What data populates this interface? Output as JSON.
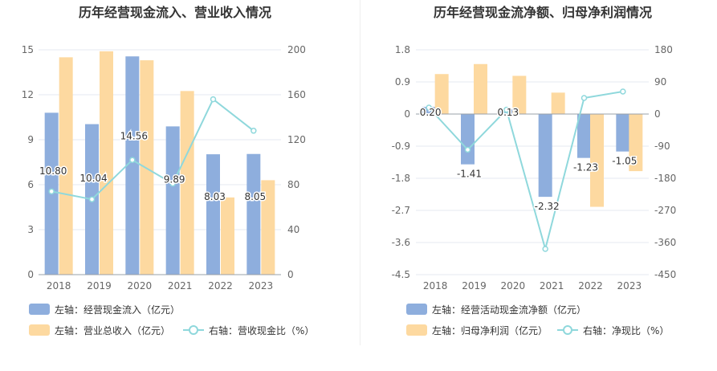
{
  "chart_data": [
    {
      "type": "bar",
      "title": "历年经营现金流入、营业收入情况",
      "categories": [
        "2018",
        "2019",
        "2020",
        "2021",
        "2022",
        "2023"
      ],
      "left_axis": {
        "ticks": [
          "0",
          "3",
          "6",
          "9",
          "12",
          "15"
        ],
        "ylim": [
          0,
          15
        ]
      },
      "right_axis": {
        "ticks": [
          "0",
          "40",
          "80",
          "120",
          "160",
          "200"
        ],
        "ylim": [
          0,
          200
        ]
      },
      "series": [
        {
          "name": "左轴：经营现金流入（亿元）",
          "kind": "bar",
          "axis": "left",
          "color": "#8eaedd",
          "values": [
            10.8,
            10.04,
            14.56,
            9.89,
            8.03,
            8.05
          ],
          "labels": [
            "10.80",
            "10.04",
            "14.56",
            "9.89",
            "8.03",
            "8.05"
          ]
        },
        {
          "name": "左轴：营业总收入（亿元）",
          "kind": "bar",
          "axis": "left",
          "color": "#fdd9a0",
          "values": [
            14.5,
            14.9,
            14.3,
            12.25,
            5.15,
            6.3
          ]
        },
        {
          "name": "右轴：营收现金比（%）",
          "kind": "line",
          "axis": "right",
          "color": "#8fd8dc",
          "values": [
            74,
            67,
            102,
            81,
            156,
            128
          ]
        }
      ]
    },
    {
      "type": "bar",
      "title": "历年经营现金流净额、归母净利润情况",
      "categories": [
        "2018",
        "2019",
        "2020",
        "2021",
        "2022",
        "2023"
      ],
      "left_axis": {
        "ticks": [
          "-4.5",
          "-3.6",
          "-2.7",
          "-1.8",
          "-0.9",
          "0",
          "0.9",
          "1.8"
        ],
        "ylim": [
          -4.5,
          1.8
        ]
      },
      "right_axis": {
        "ticks": [
          "-450",
          "-360",
          "-270",
          "-180",
          "-90",
          "0",
          "90",
          "180"
        ],
        "ylim": [
          -450,
          180
        ]
      },
      "series": [
        {
          "name": "左轴：经营活动现金流净额（亿元）",
          "kind": "bar",
          "axis": "left",
          "color": "#8eaedd",
          "values": [
            0.2,
            -1.41,
            0.13,
            -2.32,
            -1.23,
            -1.05
          ],
          "labels": [
            "0.20",
            "-1.41",
            "0.13",
            "-2.32",
            "-1.23",
            "-1.05"
          ]
        },
        {
          "name": "左轴：归母净利润（亿元）",
          "kind": "bar",
          "axis": "left",
          "color": "#fdd9a0",
          "values": [
            1.12,
            1.4,
            1.07,
            0.6,
            -2.6,
            -1.6
          ]
        },
        {
          "name": "右轴：净现比（%）",
          "kind": "line",
          "axis": "right",
          "color": "#8fd8dc",
          "values": [
            18,
            -100,
            12,
            -378,
            45,
            63
          ]
        }
      ]
    }
  ]
}
